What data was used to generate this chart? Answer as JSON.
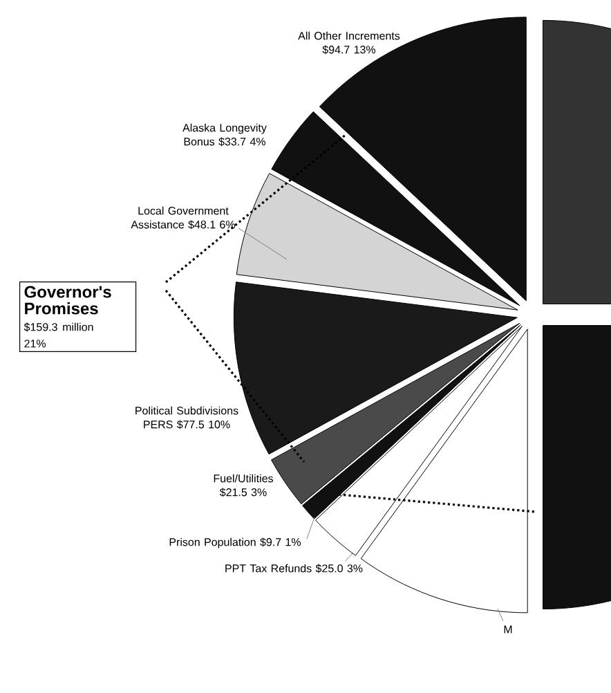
{
  "chart_data": {
    "type": "pie",
    "categories": [
      "All Other Increments",
      "Alaska Longevity Bonus",
      "Local Government Assistance",
      "Political Subdivisions PERS",
      "Fuel/Utilities",
      "Prison Population",
      "PPT Tax Refunds",
      "M",
      null,
      null
    ],
    "values": [
      13,
      4,
      6,
      10,
      3,
      1,
      3,
      10,
      25,
      25
    ],
    "value_labels": [
      "$94.7 13%",
      "$33.7 4%",
      "$48.1 6%",
      "$77.5 10%",
      "$21.5 3%",
      "$9.7 1%",
      "$25.0 3%",
      null,
      null,
      null
    ],
    "colors": [
      "#111111",
      "#111111",
      "#d4d4d4",
      "#1a1a1a",
      "#4a4a4a",
      "#111111",
      "#ffffff",
      "#ffffff",
      "#111111",
      "#333333"
    ],
    "annotations": [
      "Governor's Promises",
      "$159.3 million",
      "21%"
    ]
  }
}
